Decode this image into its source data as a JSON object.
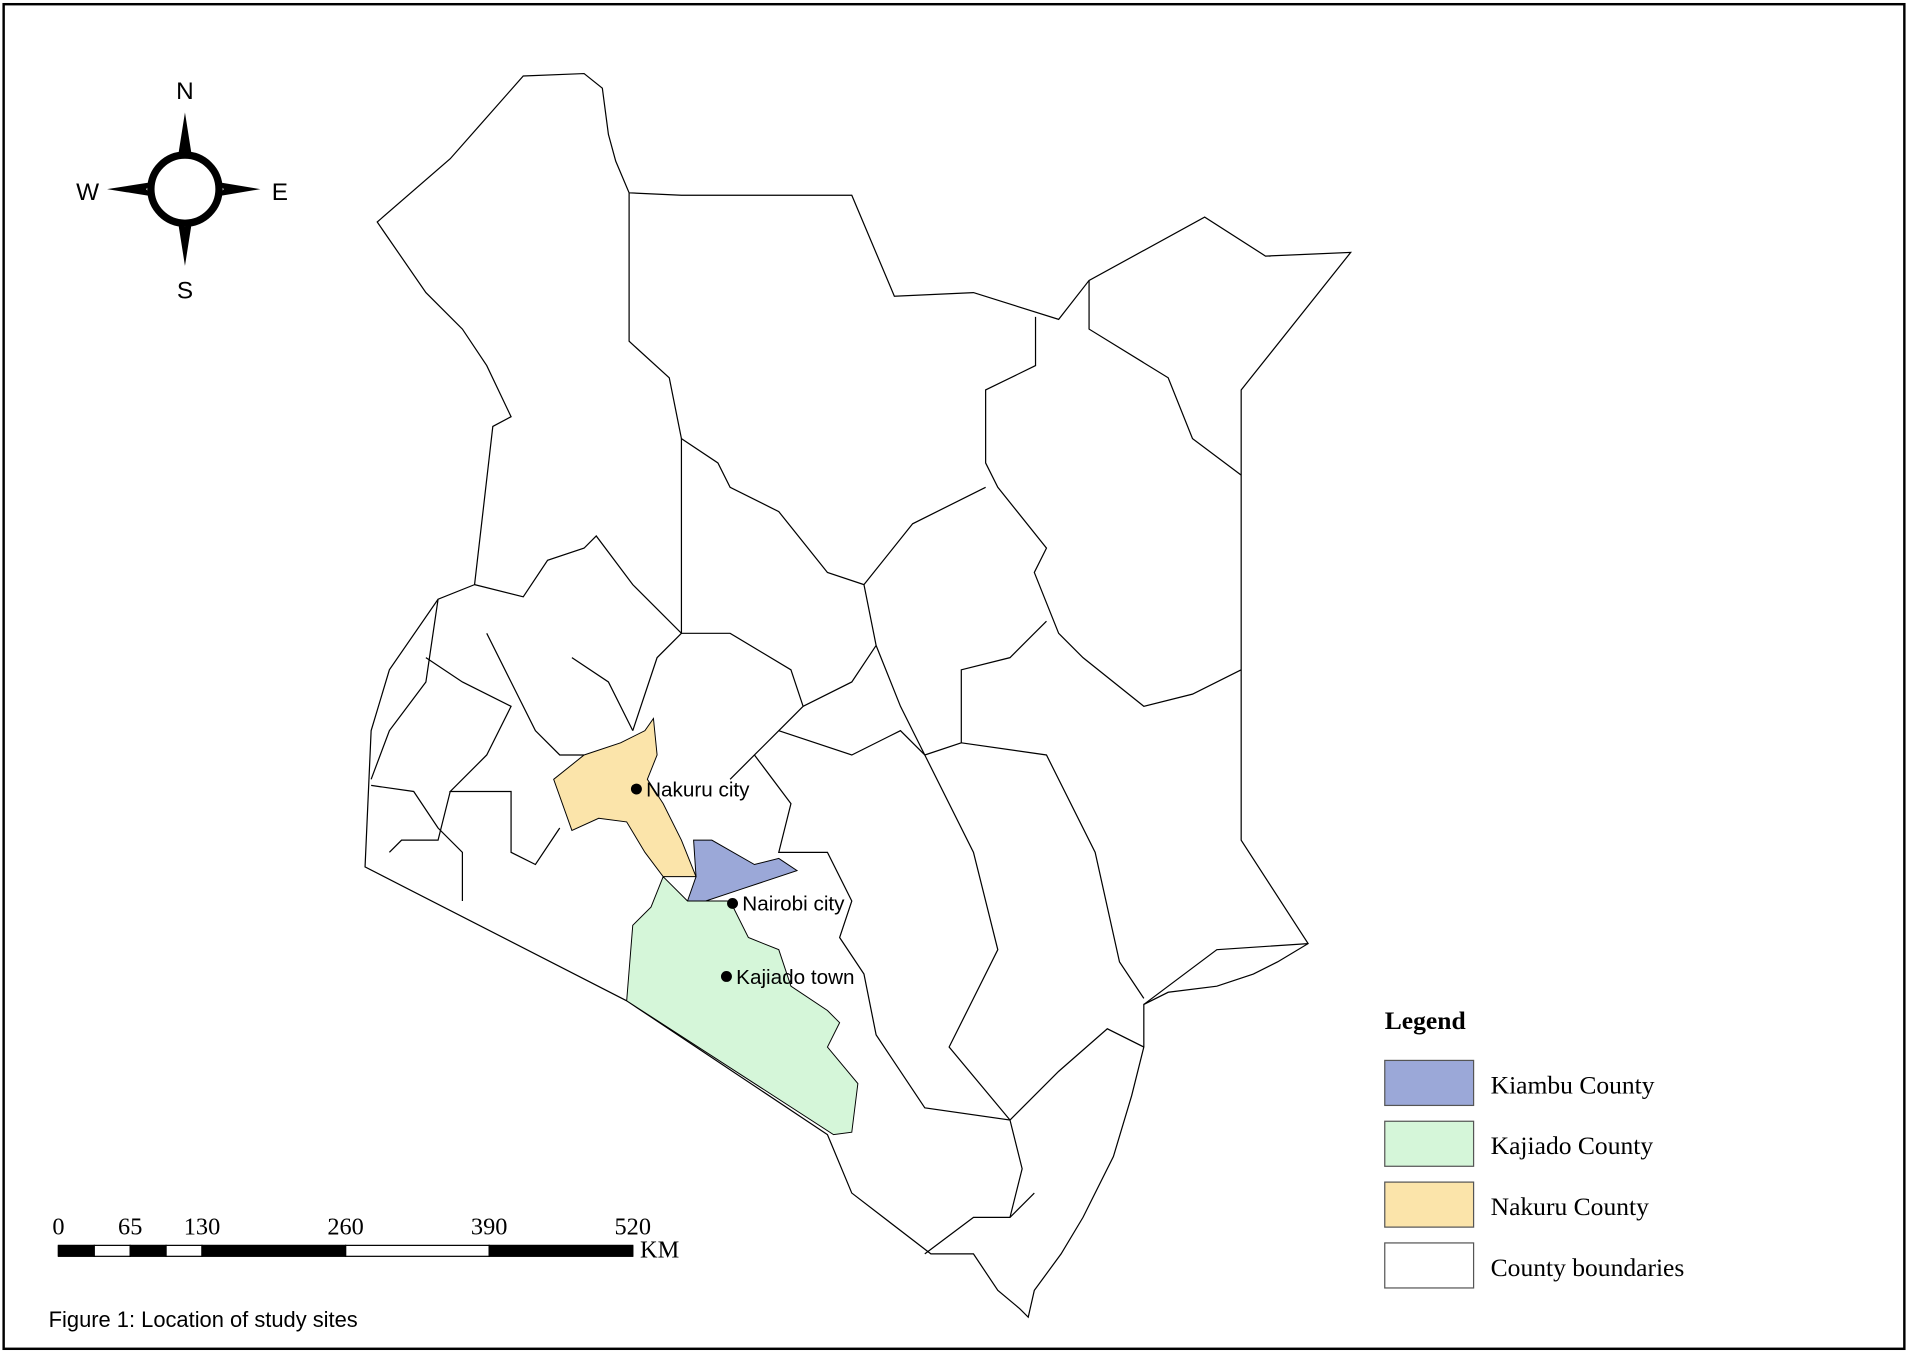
{
  "compass": {
    "north": "N",
    "south": "S",
    "east": "E",
    "west": "W"
  },
  "cities": [
    {
      "label": "Nakuru city"
    },
    {
      "label": "Nairobi city"
    },
    {
      "label": "Kajiado town"
    }
  ],
  "legend": {
    "title": "Legend",
    "items": [
      {
        "label": "Kiambu County",
        "color": "#9ba8d8"
      },
      {
        "label": "Kajiado County",
        "color": "#d5f6d9"
      },
      {
        "label": "Nakuru County",
        "color": "#fbe4aa"
      },
      {
        "label": "County boundaries",
        "color": "#ffffff"
      }
    ]
  },
  "scale_bar": {
    "ticks": [
      0,
      65,
      130,
      260,
      390,
      520
    ],
    "unit": "KM"
  },
  "caption": "Figure 1: Location of study sites"
}
